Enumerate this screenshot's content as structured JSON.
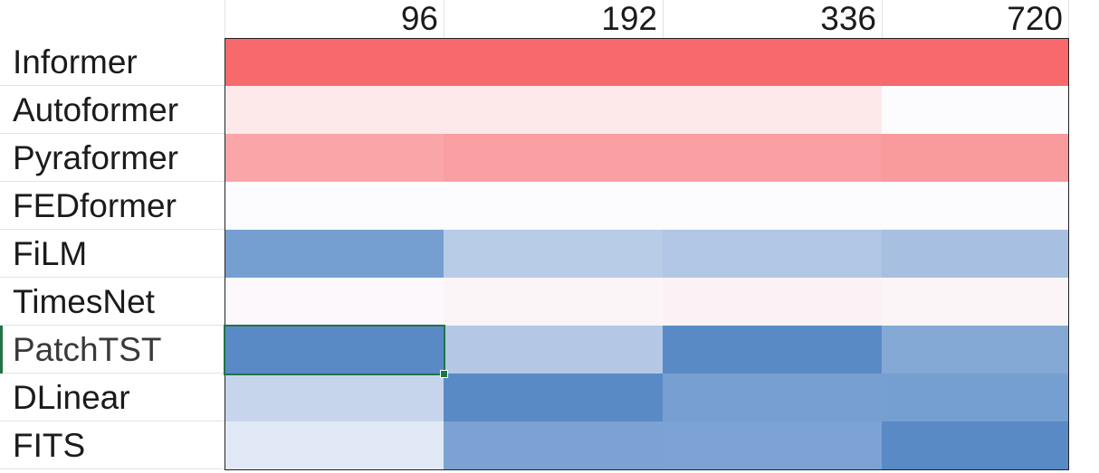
{
  "header": {
    "columns": [
      "96",
      "192",
      "336",
      "720"
    ]
  },
  "rows": [
    {
      "label": "Informer"
    },
    {
      "label": "Autoformer"
    },
    {
      "label": "Pyraformer"
    },
    {
      "label": "FEDformer"
    },
    {
      "label": "FiLM"
    },
    {
      "label": "TimesNet"
    },
    {
      "label": "PatchTST"
    },
    {
      "label": "DLinear"
    },
    {
      "label": "FITS"
    }
  ],
  "fills": [
    [
      "#f8696b",
      "#f8696b",
      "#f8696b",
      "#f8696b"
    ],
    [
      "#fde8ea",
      "#fde8ea",
      "#fde8ea",
      "#fcfcff"
    ],
    [
      "#faa5a8",
      "#f99ea1",
      "#f99ea1",
      "#f99a9d"
    ],
    [
      "#fcfcff",
      "#fcfcff",
      "#fcfcff",
      "#fcfcff"
    ],
    [
      "#769fd1",
      "#b9cce7",
      "#b0c6e4",
      "#a7bfe1"
    ],
    [
      "#fcf8fb",
      "#fcf5f8",
      "#fcf2f5",
      "#fcf5f8"
    ],
    [
      "#5a8ac6",
      "#b4c8e5",
      "#5a8ac6",
      "#85a9d5"
    ],
    [
      "#c6d5ec",
      "#5a8ac6",
      "#779fd1",
      "#769fd1"
    ],
    [
      "#e0e8f5",
      "#7ba2d2",
      "#7ca3d3",
      "#5a8ac6"
    ]
  ],
  "selection": {
    "row": 6,
    "col": 0,
    "accent": "#217346"
  }
}
